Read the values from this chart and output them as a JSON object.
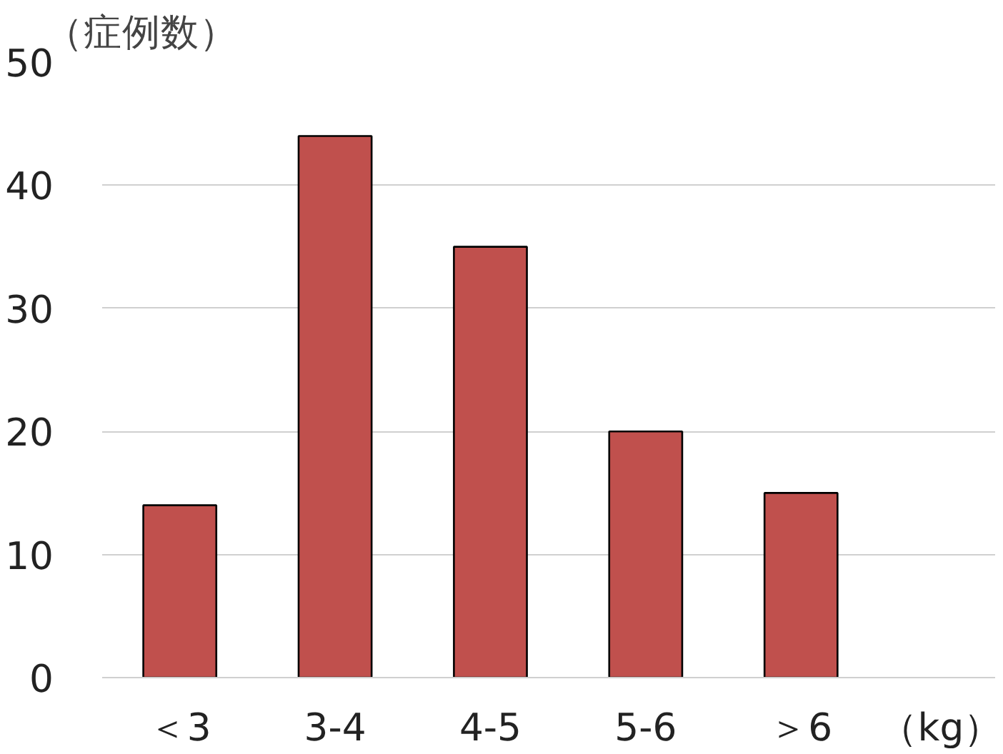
{
  "chart_data": {
    "type": "bar",
    "ylabel": "（症例数）",
    "xlabel": "（kg）",
    "categories": [
      "＜3",
      "3-4",
      "4-5",
      "5-6",
      "＞6"
    ],
    "values": [
      14,
      44,
      35,
      20,
      15
    ],
    "color": "#c0504d",
    "ylim": [
      0,
      50
    ],
    "yticks": [
      0,
      10,
      20,
      30,
      40,
      50
    ],
    "grid": "y"
  }
}
